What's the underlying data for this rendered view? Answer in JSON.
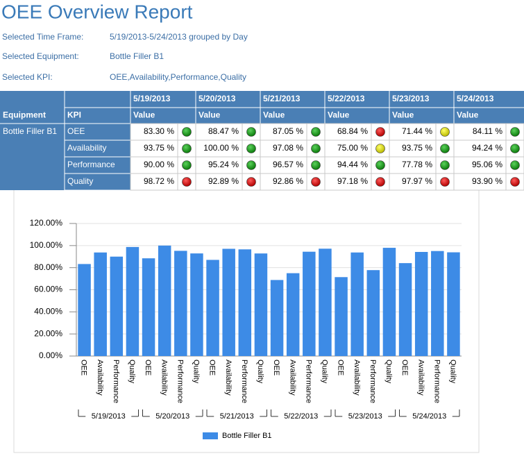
{
  "header": {
    "title": "OEE Overview Report",
    "filters": [
      {
        "label": "Selected Time Frame:",
        "value": "5/19/2013-5/24/2013 grouped by Day"
      },
      {
        "label": "Selected Equipment:",
        "value": "Bottle Filler B1"
      },
      {
        "label": "Selected KPI:",
        "value": "OEE,Availability,Performance,Quality"
      }
    ]
  },
  "table": {
    "date_headers": [
      "5/19/2013",
      "5/20/2013",
      "5/21/2013",
      "5/22/2013",
      "5/23/2013",
      "5/24/2013"
    ],
    "equipment_header": "Equipment",
    "kpi_header": "KPI",
    "value_header": "Value",
    "equipment": "Bottle Filler B1",
    "rows": [
      {
        "kpi": "OEE",
        "cells": [
          {
            "text": "83.30 %",
            "status": "green"
          },
          {
            "text": "88.47 %",
            "status": "green"
          },
          {
            "text": "87.05 %",
            "status": "green"
          },
          {
            "text": "68.84 %",
            "status": "red"
          },
          {
            "text": "71.44 %",
            "status": "yellow"
          },
          {
            "text": "84.11 %",
            "status": "green"
          }
        ]
      },
      {
        "kpi": "Availability",
        "cells": [
          {
            "text": "93.75 %",
            "status": "green"
          },
          {
            "text": "100.00 %",
            "status": "green"
          },
          {
            "text": "97.08 %",
            "status": "green"
          },
          {
            "text": "75.00 %",
            "status": "yellow"
          },
          {
            "text": "93.75 %",
            "status": "green"
          },
          {
            "text": "94.24 %",
            "status": "green"
          }
        ]
      },
      {
        "kpi": "Performance",
        "cells": [
          {
            "text": "90.00 %",
            "status": "green"
          },
          {
            "text": "95.24 %",
            "status": "green"
          },
          {
            "text": "96.57 %",
            "status": "green"
          },
          {
            "text": "94.44 %",
            "status": "green"
          },
          {
            "text": "77.78 %",
            "status": "green"
          },
          {
            "text": "95.06 %",
            "status": "green"
          }
        ]
      },
      {
        "kpi": "Quality",
        "cells": [
          {
            "text": "98.72 %",
            "status": "red"
          },
          {
            "text": "92.89 %",
            "status": "red"
          },
          {
            "text": "92.86 %",
            "status": "red"
          },
          {
            "text": "97.18 %",
            "status": "red"
          },
          {
            "text": "97.97 %",
            "status": "red"
          },
          {
            "text": "93.90 %",
            "status": "red"
          }
        ]
      }
    ]
  },
  "chart_data": {
    "type": "bar",
    "categories": [
      "OEE",
      "Availability",
      "Performance",
      "Quality",
      "OEE",
      "Availability",
      "Performance",
      "Quality",
      "OEE",
      "Availability",
      "Performance",
      "Quality",
      "OEE",
      "Availability",
      "Performance",
      "Quality",
      "OEE",
      "Availability",
      "Performance",
      "Quality",
      "OEE",
      "Availability",
      "Performance",
      "Quality"
    ],
    "groups": [
      "5/19/2013",
      "5/20/2013",
      "5/21/2013",
      "5/22/2013",
      "5/23/2013",
      "5/24/2013"
    ],
    "series": [
      {
        "name": "Bottle Filler B1",
        "color": "#3d8be6",
        "values": [
          83.3,
          93.75,
          90.0,
          98.72,
          88.47,
          100.0,
          95.24,
          92.89,
          87.05,
          97.08,
          96.57,
          92.86,
          68.84,
          75.0,
          94.44,
          97.18,
          71.44,
          93.75,
          77.78,
          97.97,
          84.11,
          94.24,
          95.06,
          93.9
        ]
      }
    ],
    "ylim": [
      0,
      120
    ],
    "yticks": [
      {
        "value": 0,
        "label": "0.00%"
      },
      {
        "value": 20,
        "label": "20.00%"
      },
      {
        "value": 40,
        "label": "40.00%"
      },
      {
        "value": 60,
        "label": "60.00%"
      },
      {
        "value": 80,
        "label": "80.00%"
      },
      {
        "value": 100,
        "label": "100.00%"
      },
      {
        "value": 120,
        "label": "120.00%"
      }
    ],
    "grid": true,
    "legend": "bottom"
  }
}
